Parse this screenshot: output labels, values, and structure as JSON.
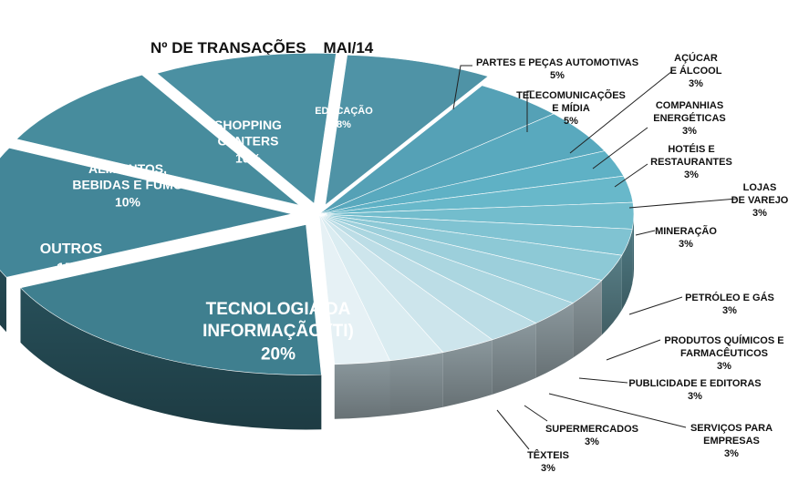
{
  "chart_data": {
    "type": "pie",
    "title": "Nº DE TRANSAÇÕES    MAI/14",
    "value_unit": "%",
    "slices": [
      {
        "label": "EDUCAÇÃO",
        "value": 8,
        "color": "#4f93a6"
      },
      {
        "label": "PARTES E PEÇAS AUTOMOTIVAS",
        "value": 5,
        "color": "#55a1b6"
      },
      {
        "label": "TELECOMUNICAÇÕES E MÍDIA",
        "value": 5,
        "color": "#59a9be"
      },
      {
        "label": "AÇÚCAR E ÁLCOOL",
        "value": 3,
        "color": "#5fb1c5"
      },
      {
        "label": "COMPANHIAS ENERGÉTICAS",
        "value": 3,
        "color": "#68b8ca"
      },
      {
        "label": "HOTÉIS E RESTAURANTES",
        "value": 3,
        "color": "#73bdcd"
      },
      {
        "label": "LOJAS DE VAREJO",
        "value": 3,
        "color": "#80c3d2"
      },
      {
        "label": "MINERAÇÃO",
        "value": 3,
        "color": "#8dc9d6"
      },
      {
        "label": "PETRÓLEO E GÁS",
        "value": 3,
        "color": "#9ccfdb"
      },
      {
        "label": "PRODUTOS QUÍMICOS E FARMACÊUTICOS",
        "value": 3,
        "color": "#abd6e0"
      },
      {
        "label": "PUBLICIDADE E EDITORAS",
        "value": 3,
        "color": "#bcdde6"
      },
      {
        "label": "SERVIÇOS PARA EMPRESAS",
        "value": 3,
        "color": "#cde5ec"
      },
      {
        "label": "SUPERMERCADOS",
        "value": 3,
        "color": "#daecf1"
      },
      {
        "label": "TÊXTEIS",
        "value": 3,
        "color": "#e6f1f5"
      },
      {
        "label": "TECNOLOGIA DA INFORMAÇÃO (TI)",
        "value": 20,
        "color": "#3f7f8f"
      },
      {
        "label": "OUTROS",
        "value": 15,
        "color": "#438698"
      },
      {
        "label": "ALIMENTOS, BEBIDAS E FUMO",
        "value": 10,
        "color": "#478c9d"
      },
      {
        "label": "SHOPPING CENTERS",
        "value": 10,
        "color": "#4b90a2"
      }
    ]
  }
}
